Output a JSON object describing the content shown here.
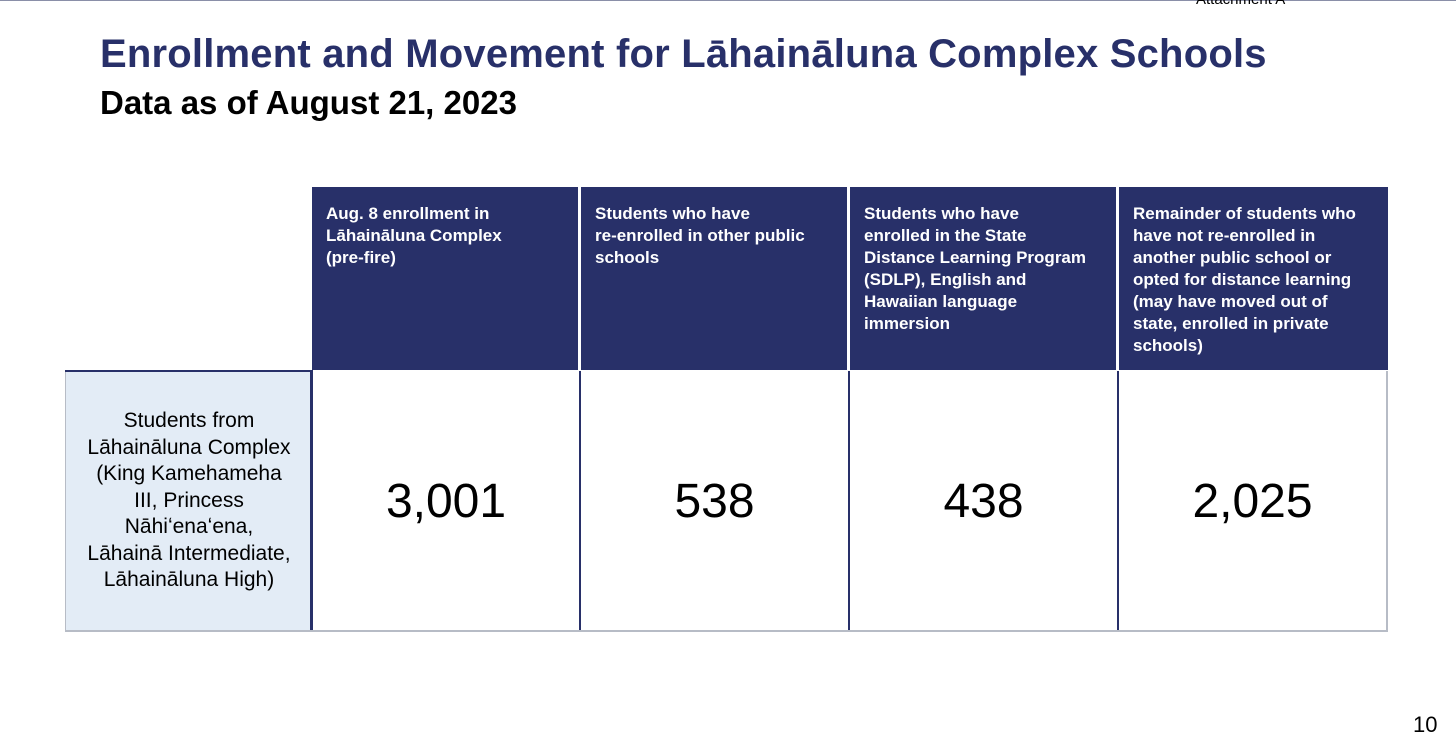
{
  "header": {
    "attachment": "Attachment A",
    "title": "Enrollment and Movement for Lāhaināluna Complex Schools",
    "subtitle": "Data as of August 21, 2023"
  },
  "table": {
    "columns": [
      "Aug. 8 enrollment in\nLāhaināluna Complex\n(pre-fire)",
      "Students who have\nre-enrolled in other public\nschools",
      "Students who have\nenrolled in the State\nDistance Learning Program\n(SDLP), English and\nHawaiian language\nimmersion",
      "Remainder of students who\nhave not re-enrolled in\nanother public school or\nopted for distance learning\n(may have moved out of\nstate, enrolled in private\nschools)"
    ],
    "row_label": "Students from\nLāhaināluna Complex\n(King Kamehameha\nIII, Princess\nNāhiʻenaʻena,\nLāhainā Intermediate,\nLāhaināluna High)",
    "values": [
      "3,001",
      "538",
      "438",
      "2,025"
    ]
  },
  "footer": {
    "page_number": "10"
  },
  "colors": {
    "header_navy": "#283069",
    "row_label_bg": "#e3ecf6"
  }
}
